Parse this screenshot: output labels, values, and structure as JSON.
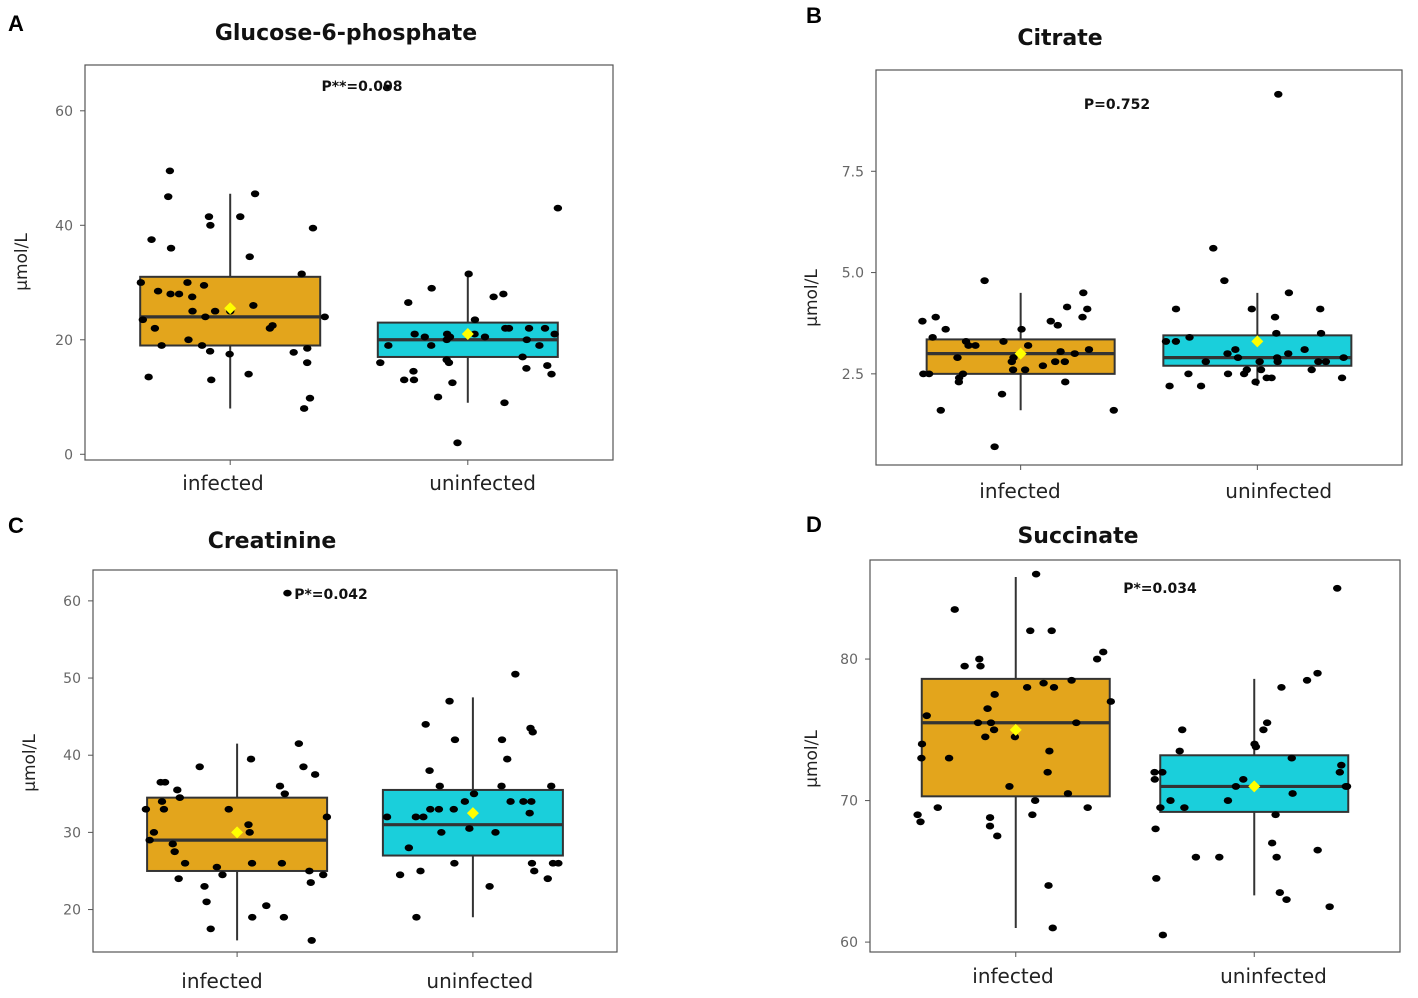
{
  "colors": {
    "infected": "#E3A51C",
    "uninfected": "#1ACFDB",
    "mean": "#FFFF00",
    "point": "#000000"
  },
  "chart_data": [
    {
      "type": "box",
      "panel": "A",
      "title": "Glucose-6-phosphate",
      "ylabel": "μmol/L",
      "pvalue": "P**=0.008",
      "ylim": [
        -1,
        68
      ],
      "yticks": [
        0,
        20,
        40,
        60
      ],
      "ytick_labels": [
        "0",
        "20",
        "40",
        "60"
      ],
      "categories": [
        "infected",
        "uninfected"
      ],
      "boxes": [
        {
          "q1": 19,
          "median": 24,
          "q3": 31,
          "whisker_low": 8,
          "whisker_high": 45.5,
          "mean": 25.5
        },
        {
          "q1": 17,
          "median": 20,
          "q3": 23,
          "whisker_low": 9,
          "whisker_high": 31.5,
          "mean": 21
        }
      ],
      "points": [
        [
          8,
          9.8,
          13.5,
          18,
          18.5,
          19,
          24,
          25,
          26,
          28,
          28.5,
          39.5,
          40,
          49.5,
          17.5,
          20,
          22,
          22.5,
          25,
          27.5,
          30,
          31.5,
          36,
          17.8,
          25,
          28,
          41.5,
          19,
          22,
          34.5,
          37.5,
          45,
          13,
          23.5,
          24,
          29.5,
          45.5,
          14,
          16,
          30,
          41.5
        ],
        [
          2,
          16.5,
          17,
          16,
          20,
          14.5,
          26.5,
          9,
          19,
          21,
          22,
          15,
          15.5,
          19,
          20,
          22,
          20.5,
          31.5,
          43,
          20.5,
          19,
          13,
          10,
          27.5,
          28,
          13,
          22,
          21,
          29,
          21,
          21,
          16,
          14,
          20.5,
          22,
          23.5,
          12.5,
          64
        ]
      ]
    },
    {
      "type": "box",
      "panel": "B",
      "title": "Citrate",
      "ylabel": "μmol/L",
      "pvalue": "P=0.752",
      "ylim": [
        0.25,
        10
      ],
      "yticks": [
        2.5,
        5.0,
        7.5
      ],
      "ytick_labels": [
        "2.5",
        "5.0",
        "7.5"
      ],
      "categories": [
        "infected",
        "uninfected"
      ],
      "boxes": [
        {
          "q1": 2.5,
          "median": 3.0,
          "q3": 3.35,
          "whisker_low": 1.6,
          "whisker_high": 4.5,
          "mean": 3.0
        },
        {
          "q1": 2.7,
          "median": 2.9,
          "q3": 3.45,
          "whisker_low": 2.2,
          "whisker_high": 4.5,
          "mean": 3.3
        }
      ],
      "points": [
        [
          3.6,
          4.1,
          4.15,
          3.4,
          3.2,
          1.6,
          3.0,
          3.3,
          2.6,
          2.8,
          2.5,
          3.3,
          2.9,
          2.7,
          2.4,
          2.8,
          3.1,
          3.2,
          3.05,
          4.8,
          3.9,
          3.2,
          2.6,
          2.5,
          3.8,
          3.7,
          3.6,
          2.8,
          2.0,
          1.6,
          0.7,
          2.5,
          4.5,
          3.9,
          3.8,
          2.9,
          2.3,
          2.3
        ],
        [
          4.8,
          2.9,
          2.8,
          2.8,
          2.6,
          2.2,
          2.9,
          2.5,
          2.6,
          2.5,
          4.1,
          3.1,
          3.0,
          4.1,
          3.3,
          2.4,
          2.9,
          3.3,
          2.8,
          2.8,
          4.5,
          3.9,
          3.4,
          2.5,
          2.2,
          2.6,
          2.4,
          3.5,
          2.3,
          3.0,
          2.8,
          3.1,
          4.1,
          3.5,
          2.4,
          5.6,
          9.4
        ]
      ]
    },
    {
      "type": "box",
      "panel": "C",
      "title": "Creatinine",
      "ylabel": "μmol/L",
      "pvalue": "P*=0.042",
      "ylim": [
        14.5,
        64
      ],
      "yticks": [
        20,
        30,
        40,
        50,
        60
      ],
      "ytick_labels": [
        "20",
        "30",
        "40",
        "50",
        "60"
      ],
      "categories": [
        "infected",
        "uninfected"
      ],
      "boxes": [
        {
          "q1": 25,
          "median": 29,
          "q3": 34.5,
          "whisker_low": 16,
          "whisker_high": 41.5,
          "mean": 30
        },
        {
          "q1": 27,
          "median": 31,
          "q3": 35.5,
          "whisker_low": 19,
          "whisker_high": 47.5,
          "mean": 32.5
        }
      ],
      "points": [
        [
          17.5,
          19,
          25.5,
          36,
          39.5,
          30,
          27.5,
          24.5,
          24.5,
          33,
          38.5,
          16,
          32,
          29,
          23.5,
          28.5,
          19,
          41.5,
          36.5,
          21,
          36.5,
          34.5,
          26,
          24,
          25,
          35.5,
          33,
          31,
          34,
          23,
          20.5,
          37.5,
          26,
          26,
          33,
          30,
          35,
          38.5,
          61
        ],
        [
          23,
          43,
          32,
          35,
          30,
          42,
          26,
          25,
          39.5,
          44,
          34,
          30.5,
          36,
          47,
          25,
          33,
          33,
          36,
          24,
          26,
          19,
          32,
          33,
          38,
          32,
          34,
          26,
          34,
          26,
          42,
          28,
          36,
          32.5,
          34,
          30,
          43.5,
          24.5,
          50.5
        ]
      ]
    },
    {
      "type": "box",
      "panel": "D",
      "title": "Succinate",
      "ylabel": "μmol/L",
      "pvalue": "P*=0.034",
      "ylim": [
        59.3,
        87
      ],
      "yticks": [
        60,
        70,
        80
      ],
      "ytick_labels": [
        "60",
        "70",
        "80"
      ],
      "categories": [
        "infected",
        "uninfected"
      ],
      "boxes": [
        {
          "q1": 70.3,
          "median": 75.5,
          "q3": 78.6,
          "whisker_low": 61,
          "whisker_high": 85.8,
          "mean": 75
        },
        {
          "q1": 69.2,
          "median": 71,
          "q3": 73.2,
          "whisker_low": 63.3,
          "whisker_high": 78.6,
          "mean": 71
        }
      ],
      "points": [
        [
          70,
          72,
          76,
          75,
          80,
          68.5,
          82,
          82,
          79.5,
          78,
          77.5,
          68.2,
          70.5,
          71,
          69,
          86,
          80,
          75.5,
          74.5,
          76.5,
          73,
          69.5,
          69,
          68.8,
          69.5,
          61,
          67.5,
          64,
          75.5,
          78,
          80.5,
          78.5,
          78.3,
          74.5,
          74,
          73.5,
          75.5,
          77,
          83.5,
          79.5,
          73
        ],
        [
          78,
          75.5,
          69,
          71,
          73,
          73.5,
          72,
          69.5,
          68,
          66,
          64.5,
          63,
          62.5,
          60.5,
          73.8,
          75,
          75,
          71,
          66.5,
          72.5,
          71.5,
          66,
          63.5,
          70,
          70,
          72,
          69.5,
          74,
          67,
          66,
          71.5,
          70.5,
          71,
          72,
          78.5,
          79,
          85
        ]
      ]
    }
  ]
}
